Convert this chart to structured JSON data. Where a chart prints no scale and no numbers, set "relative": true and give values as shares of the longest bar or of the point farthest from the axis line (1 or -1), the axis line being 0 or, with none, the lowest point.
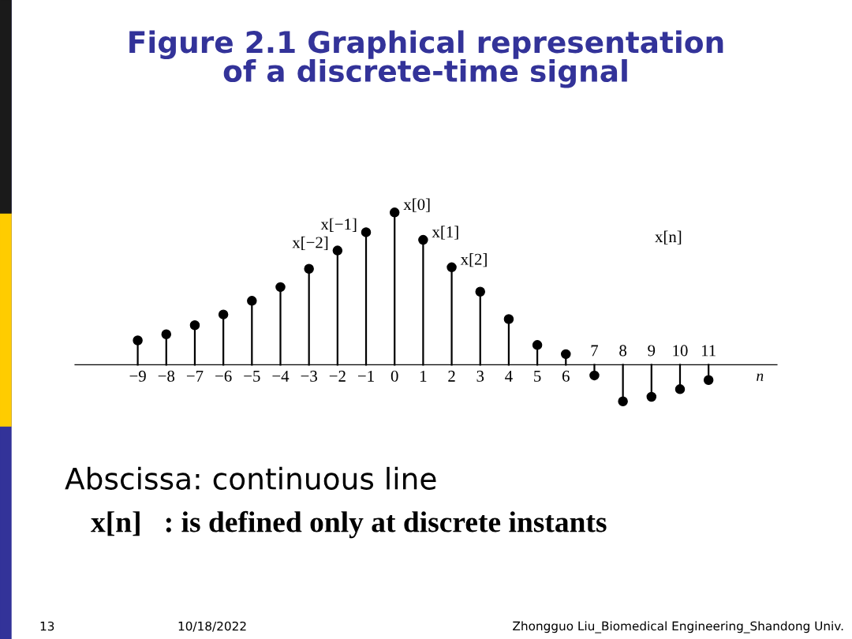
{
  "chart_data": {
    "type": "lollipop",
    "relative": true,
    "title": "Figure 2.1 Graphical representation\nof a discrete-time signal",
    "xlabel": "n",
    "categories": [
      "−9",
      "−8",
      "−7",
      "−6",
      "−5",
      "−4",
      "−3",
      "−2",
      "−1",
      "0",
      "1",
      "2",
      "3",
      "4",
      "5",
      "6",
      "7",
      "8",
      "9",
      "10",
      "11"
    ],
    "values": [
      0.16,
      0.2,
      0.26,
      0.33,
      0.42,
      0.51,
      0.63,
      0.75,
      0.87,
      1,
      0.82,
      0.64,
      0.48,
      0.3,
      0.13,
      0.07,
      -0.07,
      -0.24,
      -0.21,
      -0.16,
      -0.1
    ],
    "color": "#000000",
    "marker": "circle",
    "annotations": [
      {
        "text": "x[−2]",
        "x": "−2",
        "y": 0.75
      },
      {
        "text": "x[−1]",
        "x": "−1",
        "y": 0.87
      },
      {
        "text": "x[0]",
        "x": "0",
        "y": 1
      },
      {
        "text": "x[1]",
        "x": "1",
        "y": 0.82
      },
      {
        "text": "x[2]",
        "x": "2",
        "y": 0.64
      },
      "x[n]",
      "Abscissa: continuous line",
      "x[n]   : is defined only at discrete instants",
      "13",
      "10/18/2022",
      "Zhongguo Liu_Biomedical Engineering_Shandong Univ."
    ]
  }
}
